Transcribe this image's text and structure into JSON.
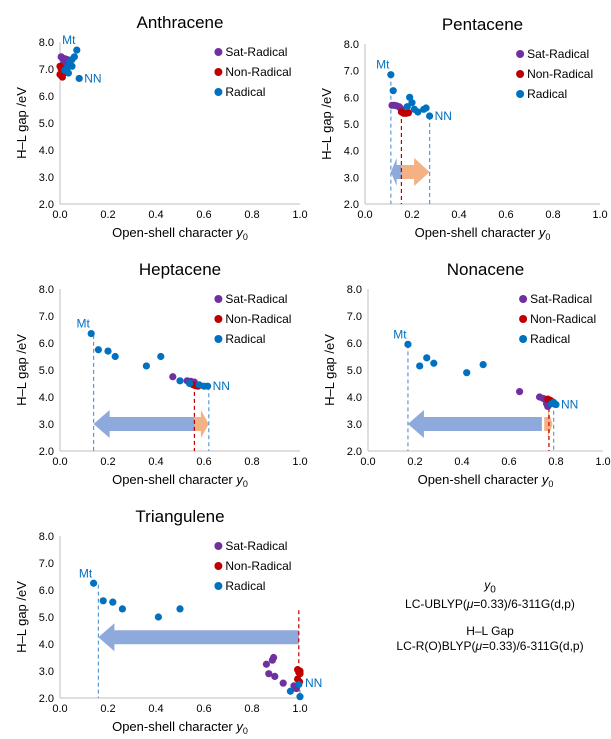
{
  "colors": {
    "sat_radical": "#7030a0",
    "non_radical": "#c00000",
    "radical": "#0070c0",
    "arrow_blue": "#8ea9db",
    "arrow_orange": "#f4b183",
    "guide_blue": "#5b9bd5",
    "guide_red": "#c00000",
    "axis": "#bfbfbf"
  },
  "legend": [
    {
      "key": "sat",
      "label": "Sat-Radical",
      "color": "#7030a0"
    },
    {
      "key": "non",
      "label": "Non-Radical",
      "color": "#c00000"
    },
    {
      "key": "rad",
      "label": "Radical",
      "color": "#0070c0"
    }
  ],
  "notes": {
    "y0_symbol": "y",
    "y0_sub": "0",
    "y0_method_pre": "LC-UBLYP(",
    "y0_method_mu": "μ",
    "y0_method_post": "=0.33)/6-311G(d,p)",
    "gap_title": "H–L Gap",
    "gap_method_pre": "LC-R(O)BLYP(",
    "gap_method_mu": "μ",
    "gap_method_post": "=0.33)/6-311G(d,p)"
  },
  "chart_data": [
    {
      "type": "scatter",
      "title": "Anthracene",
      "xlabel": "Open-shell character",
      "xlabel_italic": "y",
      "xlabel_sub": "0",
      "ylabel": "H–L gap /eV",
      "xlim": [
        0,
        1.0
      ],
      "ylim": [
        2.0,
        8.0
      ],
      "xticks": [
        "0.0",
        "0.2",
        "0.4",
        "0.6",
        "0.8",
        "1.0"
      ],
      "yticks": [
        "2.0",
        "3.0",
        "4.0",
        "5.0",
        "6.0",
        "7.0",
        "8.0"
      ],
      "grid": false,
      "legend_position": "right",
      "series": [
        {
          "name": "Sat-Radical",
          "points": [
            [
              0.005,
              7.45
            ],
            [
              0.01,
              7.4
            ],
            [
              0.02,
              7.38
            ],
            [
              0.03,
              7.35
            ],
            [
              0.04,
              7.3
            ],
            [
              0.015,
              7.2
            ],
            [
              0.025,
              7.15
            ]
          ]
        },
        {
          "name": "Non-Radical",
          "points": [
            [
              0.0,
              7.1
            ],
            [
              0.005,
              7.0
            ],
            [
              0.01,
              6.9
            ],
            [
              0.0,
              6.8
            ],
            [
              0.005,
              6.75
            ],
            [
              0.01,
              6.7
            ],
            [
              0.015,
              6.85
            ],
            [
              0.02,
              6.95
            ]
          ]
        },
        {
          "name": "Radical",
          "points": [
            [
              0.07,
              7.7
            ],
            [
              0.06,
              7.45
            ],
            [
              0.05,
              7.35
            ],
            [
              0.04,
              7.25
            ],
            [
              0.05,
              7.1
            ],
            [
              0.03,
              7.05
            ],
            [
              0.02,
              6.95
            ],
            [
              0.035,
              6.85
            ],
            [
              0.08,
              6.65
            ]
          ]
        }
      ],
      "annotations": [
        {
          "text": "Mt",
          "x": 0.07,
          "y": 7.7
        },
        {
          "text": "NN",
          "x": 0.08,
          "y": 6.65
        }
      ],
      "guides": [],
      "arrows": []
    },
    {
      "type": "scatter",
      "title": "Pentacene",
      "xlabel": "Open-shell character",
      "xlabel_italic": "y",
      "xlabel_sub": "0",
      "ylabel": "H–L gap /eV",
      "xlim": [
        0,
        1.0
      ],
      "ylim": [
        2.0,
        8.0
      ],
      "xticks": [
        "0.0",
        "0.2",
        "0.4",
        "0.6",
        "0.8",
        "1.0"
      ],
      "yticks": [
        "2.0",
        "3.0",
        "4.0",
        "5.0",
        "6.0",
        "7.0",
        "8.0"
      ],
      "grid": false,
      "legend_position": "right",
      "series": [
        {
          "name": "Sat-Radical",
          "points": [
            [
              0.115,
              5.7
            ],
            [
              0.125,
              5.7
            ],
            [
              0.135,
              5.68
            ],
            [
              0.145,
              5.65
            ],
            [
              0.15,
              5.6
            ],
            [
              0.155,
              5.55
            ]
          ]
        },
        {
          "name": "Non-Radical",
          "points": [
            [
              0.155,
              5.45
            ],
            [
              0.165,
              5.4
            ],
            [
              0.175,
              5.4
            ],
            [
              0.185,
              5.42
            ]
          ]
        },
        {
          "name": "Radical",
          "points": [
            [
              0.11,
              6.85
            ],
            [
              0.12,
              6.25
            ],
            [
              0.19,
              6.0
            ],
            [
              0.2,
              5.8
            ],
            [
              0.18,
              5.65
            ],
            [
              0.21,
              5.55
            ],
            [
              0.225,
              5.45
            ],
            [
              0.25,
              5.55
            ],
            [
              0.26,
              5.6
            ],
            [
              0.275,
              5.3
            ]
          ]
        }
      ],
      "annotations": [
        {
          "text": "Mt",
          "x": 0.11,
          "y": 6.85
        },
        {
          "text": "NN",
          "x": 0.275,
          "y": 5.3
        }
      ],
      "guides": [
        {
          "x": 0.11,
          "y_top": 6.85,
          "color": "#5b9bd5"
        },
        {
          "x": 0.155,
          "y_top": 5.45,
          "color": "#c00000"
        },
        {
          "x": 0.275,
          "y_top": 5.3,
          "color": "#5b9bd5"
        }
      ],
      "arrows": [
        {
          "from": 0.155,
          "to": 0.11,
          "y": 3.2,
          "color": "#8ea9db"
        },
        {
          "from": 0.155,
          "to": 0.275,
          "y": 3.2,
          "color": "#f4b183"
        }
      ]
    },
    {
      "type": "scatter",
      "title": "Heptacene",
      "xlabel": "Open-shell character",
      "xlabel_italic": "y",
      "xlabel_sub": "0",
      "ylabel": "H–L gap /eV",
      "xlim": [
        0,
        1.0
      ],
      "ylim": [
        2.0,
        8.0
      ],
      "xticks": [
        "0.0",
        "0.2",
        "0.4",
        "0.6",
        "0.8",
        "1.0"
      ],
      "yticks": [
        "2.0",
        "3.0",
        "4.0",
        "5.0",
        "6.0",
        "7.0",
        "8.0"
      ],
      "grid": false,
      "legend_position": "right",
      "series": [
        {
          "name": "Sat-Radical",
          "points": [
            [
              0.47,
              4.75
            ],
            [
              0.53,
              4.6
            ],
            [
              0.545,
              4.58
            ],
            [
              0.56,
              4.55
            ]
          ]
        },
        {
          "name": "Non-Radical",
          "points": [
            [
              0.555,
              4.45
            ],
            [
              0.565,
              4.42
            ],
            [
              0.575,
              4.4
            ]
          ]
        },
        {
          "name": "Radical",
          "points": [
            [
              0.13,
              6.35
            ],
            [
              0.16,
              5.75
            ],
            [
              0.2,
              5.7
            ],
            [
              0.23,
              5.5
            ],
            [
              0.36,
              5.15
            ],
            [
              0.42,
              5.5
            ],
            [
              0.5,
              4.6
            ],
            [
              0.54,
              4.5
            ],
            [
              0.58,
              4.45
            ],
            [
              0.6,
              4.4
            ],
            [
              0.615,
              4.4
            ]
          ]
        }
      ],
      "annotations": [
        {
          "text": "Mt",
          "x": 0.13,
          "y": 6.35
        },
        {
          "text": "NN",
          "x": 0.615,
          "y": 4.4
        }
      ],
      "guides": [
        {
          "x": 0.14,
          "y_top": 6.3,
          "color": "#5b9bd5"
        },
        {
          "x": 0.56,
          "y_top": 4.45,
          "color": "#c00000"
        },
        {
          "x": 0.62,
          "y_top": 4.4,
          "color": "#5b9bd5"
        }
      ],
      "arrows": [
        {
          "from": 0.56,
          "to": 0.14,
          "y": 3.0,
          "color": "#8ea9db"
        },
        {
          "from": 0.56,
          "to": 0.62,
          "y": 3.0,
          "color": "#f4b183"
        }
      ]
    },
    {
      "type": "scatter",
      "title": "Nonacene",
      "xlabel": "Open-shell character",
      "xlabel_italic": "y",
      "xlabel_sub": "0",
      "ylabel": "H–L gap /eV",
      "xlim": [
        0,
        1.0
      ],
      "ylim": [
        2.0,
        8.0
      ],
      "xticks": [
        "0.0",
        "0.2",
        "0.4",
        "0.6",
        "0.8",
        "1.0"
      ],
      "yticks": [
        "2.0",
        "3.0",
        "4.0",
        "5.0",
        "6.0",
        "7.0",
        "8.0"
      ],
      "grid": false,
      "legend_position": "right",
      "series": [
        {
          "name": "Sat-Radical",
          "points": [
            [
              0.645,
              4.2
            ],
            [
              0.73,
              4.0
            ],
            [
              0.745,
              3.95
            ],
            [
              0.755,
              3.9
            ],
            [
              0.76,
              3.75
            ],
            [
              0.765,
              3.65
            ]
          ]
        },
        {
          "name": "Non-Radical",
          "points": [
            [
              0.765,
              3.92
            ],
            [
              0.775,
              3.88
            ],
            [
              0.78,
              3.85
            ]
          ]
        },
        {
          "name": "Radical",
          "points": [
            [
              0.17,
              5.95
            ],
            [
              0.22,
              5.15
            ],
            [
              0.25,
              5.45
            ],
            [
              0.28,
              5.25
            ],
            [
              0.42,
              4.9
            ],
            [
              0.49,
              5.2
            ],
            [
              0.78,
              3.75
            ],
            [
              0.79,
              3.8
            ],
            [
              0.8,
              3.72
            ]
          ]
        }
      ],
      "annotations": [
        {
          "text": "Mt",
          "x": 0.17,
          "y": 5.95
        },
        {
          "text": "NN",
          "x": 0.8,
          "y": 3.72
        }
      ],
      "guides": [
        {
          "x": 0.17,
          "y_top": 5.95,
          "color": "#5b9bd5"
        },
        {
          "x": 0.77,
          "y_top": 3.85,
          "color": "#c00000"
        },
        {
          "x": 0.79,
          "y_top": 3.75,
          "color": "#5b9bd5"
        }
      ],
      "arrows": [
        {
          "from": 0.74,
          "to": 0.17,
          "y": 3.0,
          "color": "#8ea9db"
        },
        {
          "from": 0.75,
          "to": 0.785,
          "y": 3.0,
          "color": "#f4b183"
        }
      ]
    },
    {
      "type": "scatter",
      "title": "Triangulene",
      "xlabel": "Open-shell character",
      "xlabel_italic": "y",
      "xlabel_sub": "0",
      "ylabel": "H–L gap /eV",
      "xlim": [
        0,
        1.0
      ],
      "ylim": [
        2.0,
        8.0
      ],
      "xticks": [
        "0.0",
        "0.2",
        "0.4",
        "0.6",
        "0.8",
        "1.0"
      ],
      "yticks": [
        "2.0",
        "3.0",
        "4.0",
        "5.0",
        "6.0",
        "7.0",
        "8.0"
      ],
      "grid": false,
      "legend_position": "right",
      "series": [
        {
          "name": "Sat-Radical",
          "points": [
            [
              0.86,
              3.25
            ],
            [
              0.87,
              2.9
            ],
            [
              0.885,
              3.4
            ],
            [
              0.89,
              3.5
            ],
            [
              0.895,
              2.8
            ],
            [
              0.93,
              2.55
            ],
            [
              0.975,
              2.45
            ],
            [
              0.985,
              2.35
            ]
          ]
        },
        {
          "name": "Non-Radical",
          "points": [
            [
              0.99,
              3.05
            ],
            [
              0.995,
              2.95
            ],
            [
              1.0,
              2.9
            ],
            [
              0.99,
              2.7
            ],
            [
              0.998,
              2.6
            ],
            [
              1.0,
              3.0
            ]
          ]
        },
        {
          "name": "Radical",
          "points": [
            [
              0.14,
              6.25
            ],
            [
              0.18,
              5.6
            ],
            [
              0.22,
              5.55
            ],
            [
              0.26,
              5.3
            ],
            [
              0.41,
              5.0
            ],
            [
              0.5,
              5.3
            ],
            [
              0.96,
              2.25
            ],
            [
              0.995,
              2.5
            ],
            [
              1.0,
              2.05
            ]
          ]
        }
      ],
      "annotations": [
        {
          "text": "Mt",
          "x": 0.14,
          "y": 6.25
        },
        {
          "text": "NN",
          "x": 1.0,
          "y": 2.55
        }
      ],
      "guides": [
        {
          "x": 0.16,
          "y_top": 6.2,
          "color": "#5b9bd5"
        },
        {
          "x": 0.995,
          "y_top": 5.25,
          "color": "#c00000"
        },
        {
          "x": 1.0,
          "y_top": 2.55,
          "color": "#5b9bd5"
        }
      ],
      "arrows": [
        {
          "from": 0.995,
          "to": 0.16,
          "y": 4.25,
          "color": "#8ea9db"
        }
      ]
    }
  ]
}
